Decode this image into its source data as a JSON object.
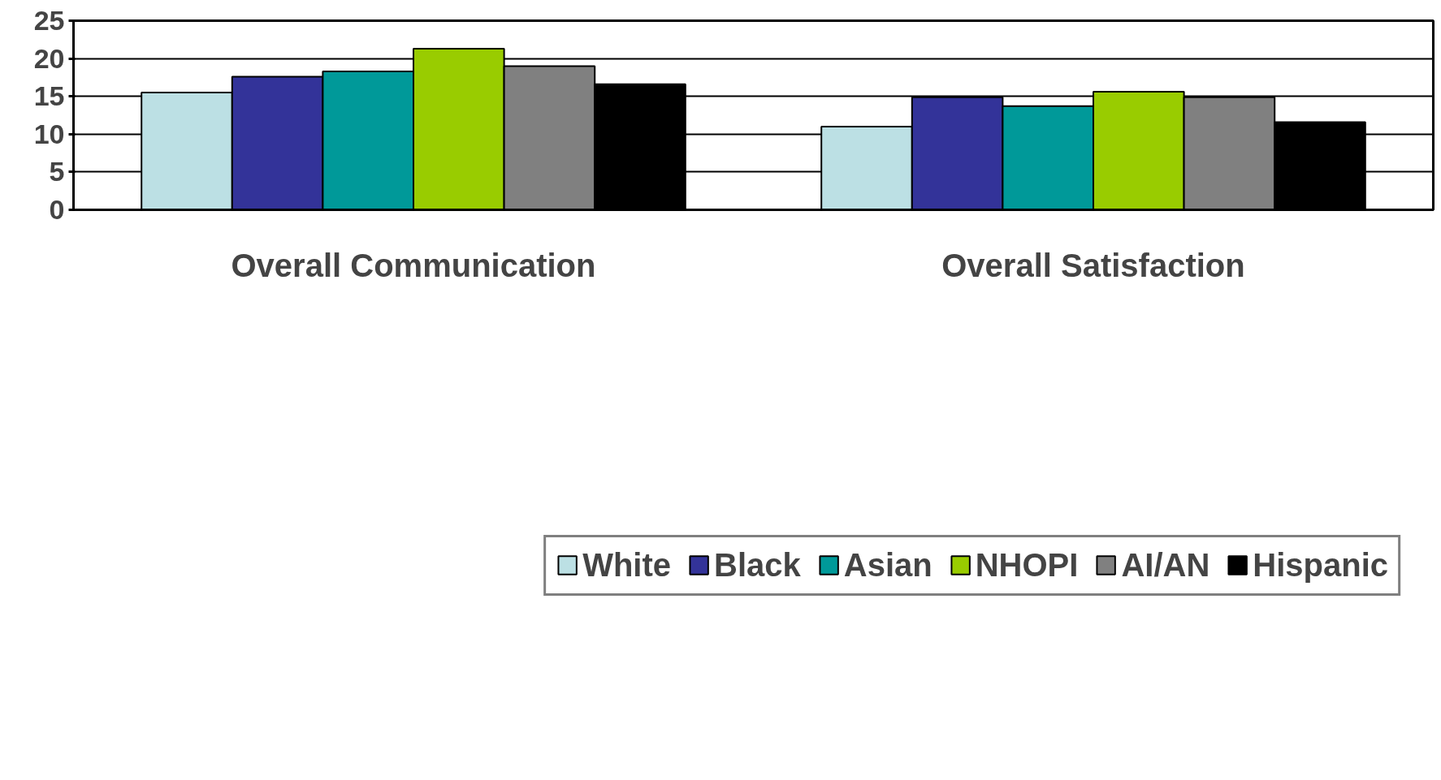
{
  "chart_data": {
    "type": "bar",
    "categories": [
      "Overall Communication",
      "Overall Satisfaction"
    ],
    "series": [
      {
        "name": "White",
        "color": "#bce0e4",
        "values": [
          15.5,
          11.0
        ]
      },
      {
        "name": "Black",
        "color": "#333399",
        "values": [
          17.6,
          14.9
        ]
      },
      {
        "name": "Asian",
        "color": "#009999",
        "values": [
          18.3,
          13.7
        ]
      },
      {
        "name": "NHOPI",
        "color": "#99cc00",
        "values": [
          21.3,
          15.6
        ]
      },
      {
        "name": "AI/AN",
        "color": "#808080",
        "values": [
          19.0,
          14.9
        ]
      },
      {
        "name": "Hispanic",
        "color": "#000000",
        "values": [
          16.6,
          11.6
        ]
      }
    ],
    "ylim": [
      0,
      25
    ],
    "yticks": [
      0,
      5,
      10,
      15,
      20,
      25
    ],
    "grid": "y",
    "legend": "bottom"
  }
}
